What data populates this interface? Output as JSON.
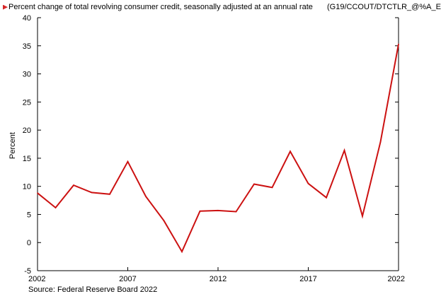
{
  "legend": {
    "label": "Percent change of total revolving consumer credit, seasonally adjusted at an annual rate",
    "code": "(G19/CCOUT/DTCTLR_@%A_E"
  },
  "source": "Source: Federal Reserve Board 2022",
  "colors": {
    "line": "#cc1111",
    "axis": "#000000"
  },
  "chart_data": {
    "type": "line",
    "ylabel": "Percent",
    "xlim": [
      2002,
      2022
    ],
    "ylim": [
      -5,
      40
    ],
    "y_ticks": [
      -5,
      0,
      5,
      10,
      15,
      20,
      25,
      30,
      35,
      40
    ],
    "x_ticks": [
      2002,
      2007,
      2012,
      2017,
      2022
    ],
    "grid": false,
    "series": [
      {
        "x": [
          2002,
          2003,
          2004,
          2005,
          2006,
          2007,
          2008,
          2009,
          2010,
          2011,
          2012,
          2013,
          2014,
          2015,
          2016,
          2017,
          2018,
          2019,
          2020,
          2021,
          2022
        ],
        "values": [
          8.8,
          6.2,
          10.2,
          8.9,
          8.6,
          14.4,
          8.2,
          3.9,
          -1.6,
          5.6,
          5.7,
          5.5,
          10.4,
          9.8,
          16.2,
          10.5,
          8.0,
          16.4,
          4.7,
          17.9,
          35.3
        ]
      }
    ]
  }
}
